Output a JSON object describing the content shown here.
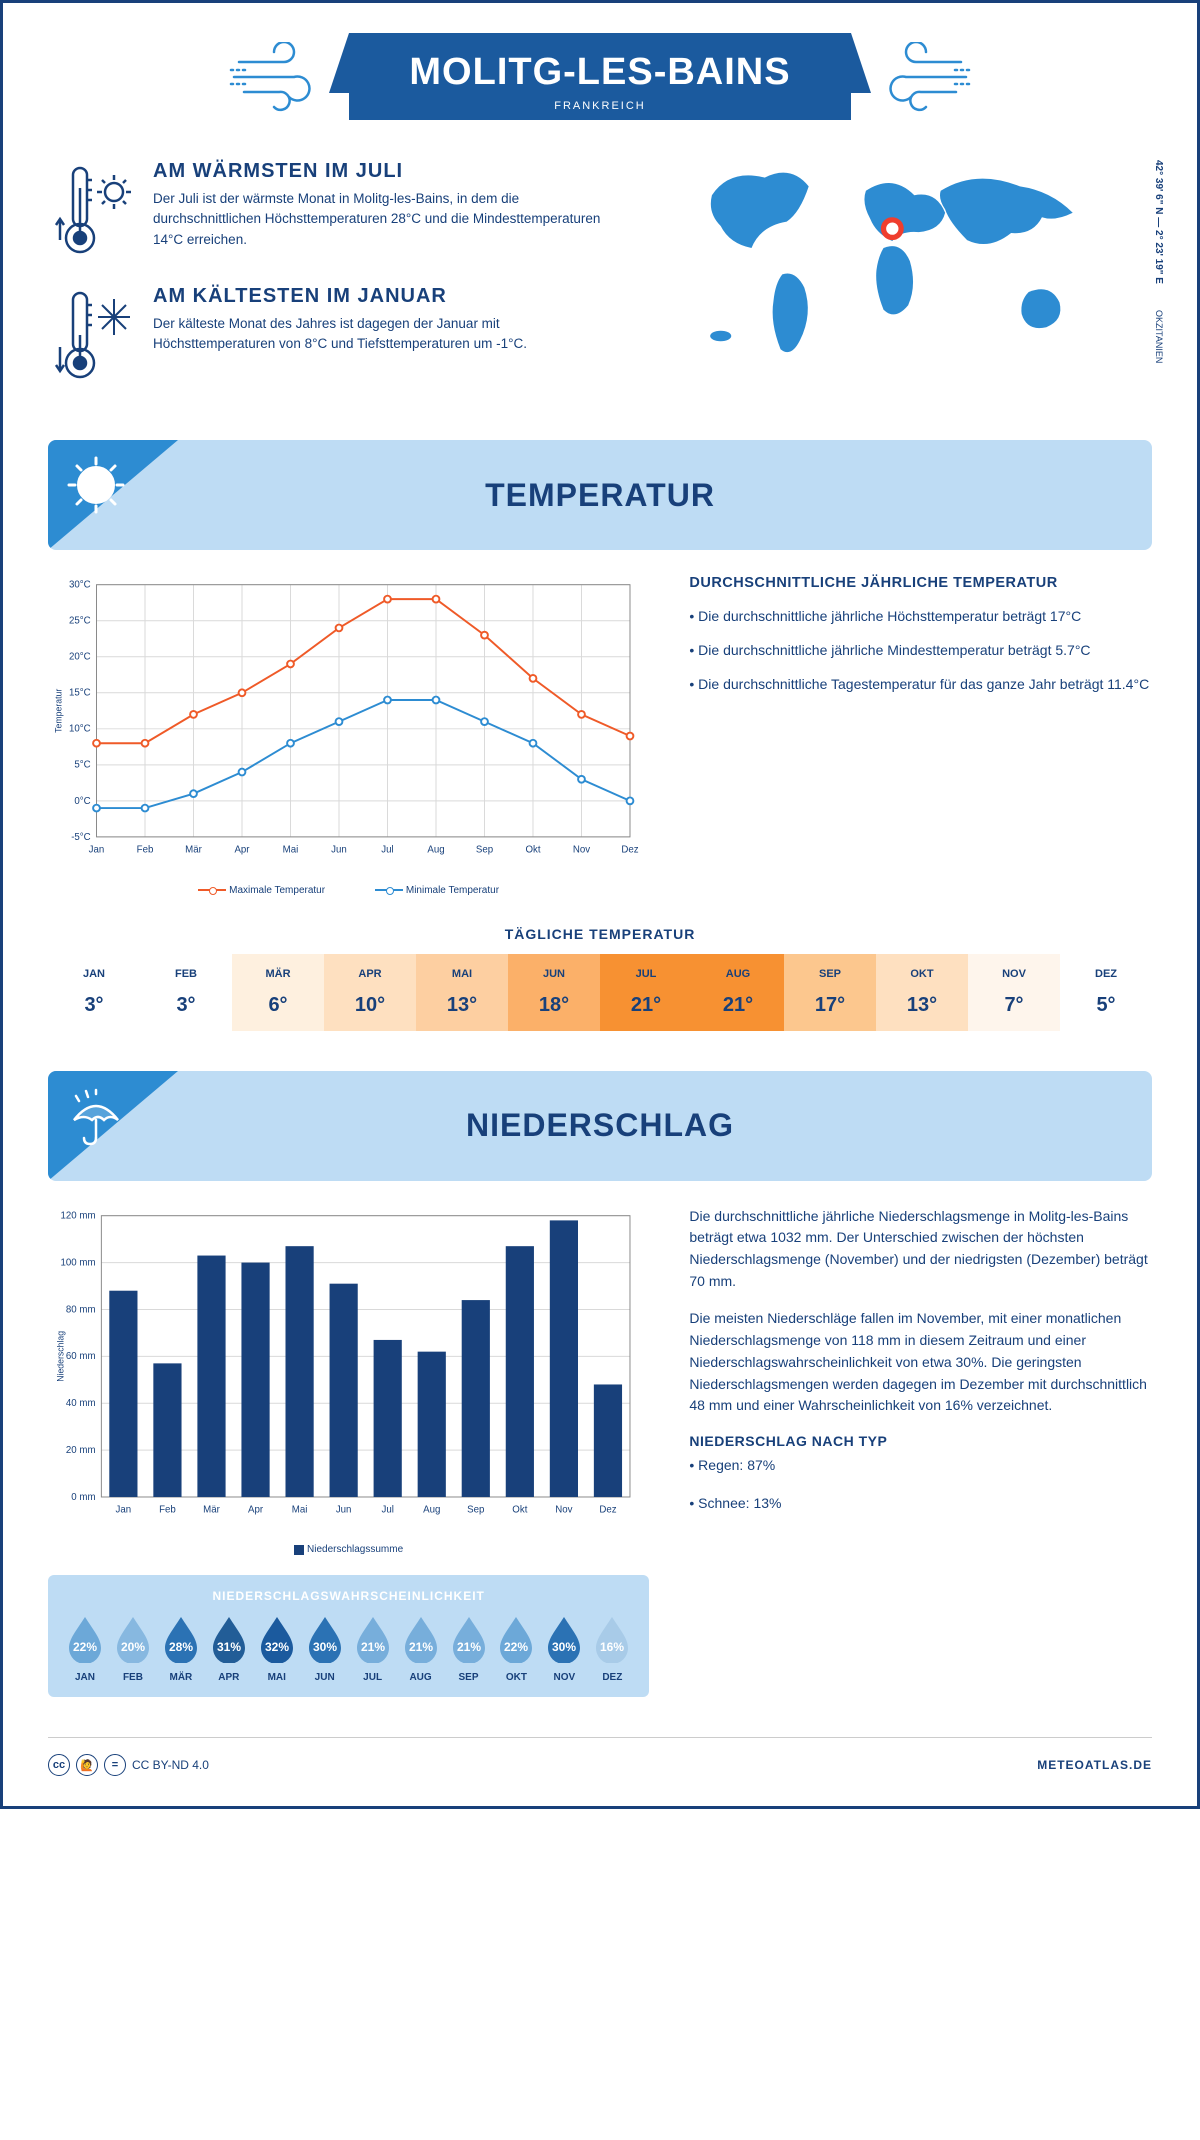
{
  "header": {
    "city": "MOLITG-LES-BAINS",
    "country": "FRANKREICH"
  },
  "intro": {
    "hot": {
      "title": "AM WÄRMSTEN IM JULI",
      "text": "Der Juli ist der wärmste Monat in Molitg-les-Bains, in dem die durchschnittlichen Höchsttemperaturen 28°C und die Mindesttemperaturen 14°C erreichen."
    },
    "cold": {
      "title": "AM KÄLTESTEN IM JANUAR",
      "text": "Der kälteste Monat des Jahres ist dagegen der Januar mit Höchsttemperaturen von 8°C und Tiefsttemperaturen um -1°C."
    },
    "coords": "42° 39' 6\" N — 2° 23' 19\" E",
    "region": "OKZITANIEN"
  },
  "temperature": {
    "section_title": "TEMPERATUR",
    "months": [
      "Jan",
      "Feb",
      "Mär",
      "Apr",
      "Mai",
      "Jun",
      "Jul",
      "Aug",
      "Sep",
      "Okt",
      "Nov",
      "Dez"
    ],
    "max": [
      8,
      8,
      12,
      15,
      19,
      24,
      28,
      28,
      23,
      17,
      12,
      9
    ],
    "min": [
      -1,
      -1,
      1,
      4,
      8,
      11,
      14,
      14,
      11,
      8,
      3,
      0
    ],
    "ylim": [
      -5,
      30
    ],
    "ytick_step": 5,
    "max_color": "#ef5a28",
    "min_color": "#2d8cd2",
    "grid_color": "#d9d9d9",
    "y_axis_label": "Temperatur",
    "legend_max": "Maximale Temperatur",
    "legend_min": "Minimale Temperatur",
    "info_title": "DURCHSCHNITTLICHE JÄHRLICHE TEMPERATUR",
    "info_lines": [
      "• Die durchschnittliche jährliche Höchsttemperatur beträgt 17°C",
      "• Die durchschnittliche jährliche Mindesttemperatur beträgt 5.7°C",
      "• Die durchschnittliche Tagestemperatur für das ganze Jahr beträgt 11.4°C"
    ],
    "daily_title": "TÄGLICHE TEMPERATUR",
    "daily_months": [
      "JAN",
      "FEB",
      "MÄR",
      "APR",
      "MAI",
      "JUN",
      "JUL",
      "AUG",
      "SEP",
      "OKT",
      "NOV",
      "DEZ"
    ],
    "daily_values": [
      "3°",
      "3°",
      "6°",
      "10°",
      "13°",
      "18°",
      "21°",
      "21°",
      "17°",
      "13°",
      "7°",
      "5°"
    ],
    "daily_colors": [
      "#ffffff",
      "#ffffff",
      "#fef0df",
      "#fee0c0",
      "#fdcfa1",
      "#fbb069",
      "#f79132",
      "#f79132",
      "#fcc78e",
      "#fee0c0",
      "#fef5ec",
      "#ffffff"
    ]
  },
  "precipitation": {
    "section_title": "NIEDERSCHLAG",
    "months": [
      "Jan",
      "Feb",
      "Mär",
      "Apr",
      "Mai",
      "Jun",
      "Jul",
      "Aug",
      "Sep",
      "Okt",
      "Nov",
      "Dez"
    ],
    "values": [
      88,
      57,
      103,
      100,
      107,
      91,
      67,
      62,
      84,
      107,
      118,
      48
    ],
    "ylim": [
      0,
      120
    ],
    "ytick_step": 20,
    "bar_color": "#18407a",
    "grid_color": "#d9d9d9",
    "y_axis_label": "Niederschlag",
    "legend_label": "Niederschlagssumme",
    "text1": "Die durchschnittliche jährliche Niederschlagsmenge in Molitg-les-Bains beträgt etwa 1032 mm. Der Unterschied zwischen der höchsten Niederschlagsmenge (November) und der niedrigsten (Dezember) beträgt 70 mm.",
    "text2": "Die meisten Niederschläge fallen im November, mit einer monatlichen Niederschlagsmenge von 118 mm in diesem Zeitraum und einer Niederschlagswahrscheinlichkeit von etwa 30%. Die geringsten Niederschlagsmengen werden dagegen im Dezember mit durchschnittlich 48 mm und einer Wahrscheinlichkeit von 16% verzeichnet.",
    "type_title": "NIEDERSCHLAG NACH TYP",
    "type_lines": [
      "• Regen: 87%",
      "• Schnee: 13%"
    ],
    "prob_title": "NIEDERSCHLAGSWAHRSCHEINLICHKEIT",
    "prob_months": [
      "JAN",
      "FEB",
      "MÄR",
      "APR",
      "MAI",
      "JUN",
      "JUL",
      "AUG",
      "SEP",
      "OKT",
      "NOV",
      "DEZ"
    ],
    "prob_values": [
      "22%",
      "20%",
      "28%",
      "31%",
      "32%",
      "30%",
      "21%",
      "21%",
      "21%",
      "22%",
      "30%",
      "16%"
    ],
    "prob_colors": [
      "#6ca8d8",
      "#87b8e0",
      "#2b72b4",
      "#225d97",
      "#1b5a9e",
      "#2b72b4",
      "#77aedb",
      "#77aedb",
      "#77aedb",
      "#6ca8d8",
      "#2b72b4",
      "#a8cbe8"
    ]
  },
  "footer": {
    "license": "CC BY-ND 4.0",
    "site": "METEOATLAS.DE"
  }
}
